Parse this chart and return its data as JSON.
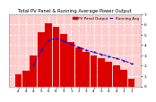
{
  "title": "Total PV Panel & Running Average Power Output",
  "bar_color": "#dd0000",
  "line_color": "#0000dd",
  "background_color": "#ffffff",
  "plot_bg_color": "#ffcccc",
  "grid_color": "#ffffff",
  "x_labels": [
    "4",
    "4",
    "4",
    "5",
    "6",
    "8",
    "9",
    "1",
    "2",
    "3",
    "4",
    "5",
    "4",
    "4",
    "1",
    "1"
  ],
  "bar_values": [
    1.2,
    1.5,
    3.0,
    5.2,
    6.1,
    5.8,
    5.1,
    4.3,
    3.8,
    3.3,
    3.0,
    2.7,
    2.4,
    2.0,
    1.6,
    0.7
  ],
  "line_values": [
    null,
    null,
    2.0,
    3.5,
    4.5,
    4.6,
    4.4,
    4.1,
    3.8,
    3.5,
    3.3,
    3.1,
    2.9,
    2.7,
    2.5,
    2.2
  ],
  "ylim": [
    0,
    7
  ],
  "yticks": [
    0,
    1,
    2,
    3,
    4,
    5,
    6,
    7
  ],
  "ytick_labels": [
    "0.",
    "1.",
    "2.",
    "3.",
    "4.",
    "5.",
    "6.",
    "7."
  ],
  "legend_bar": "PV Panel Output",
  "legend_line": "Running Avg",
  "title_fontsize": 3.8,
  "tick_fontsize": 3.0,
  "legend_fontsize": 3.0
}
